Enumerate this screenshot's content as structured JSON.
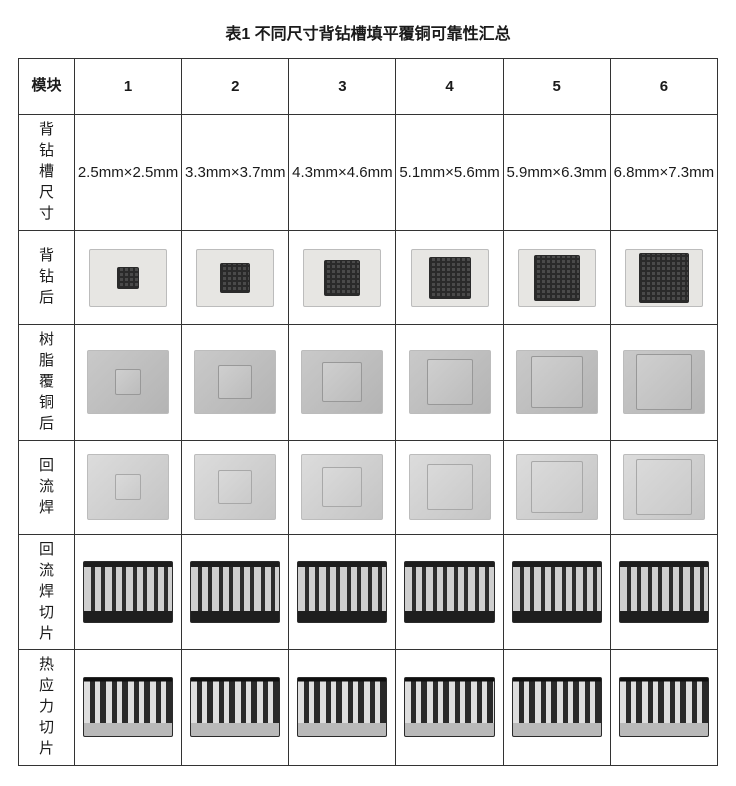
{
  "title": "表1 不同尺寸背钻槽填平覆铜可靠性汇总",
  "headers": {
    "module": "模块",
    "cols": [
      "1",
      "2",
      "3",
      "4",
      "5",
      "6"
    ]
  },
  "rows": {
    "size": {
      "label": "背钻槽尺寸",
      "values": [
        "2.5mm×2.5mm",
        "3.3mm×3.7mm",
        "4.3mm×4.6mm",
        "5.1mm×5.6mm",
        "5.9mm×6.3mm",
        "6.8mm×7.3mm"
      ]
    },
    "after_drill": {
      "label": "背钻后",
      "inner_sizes": [
        22,
        30,
        36,
        42,
        46,
        50
      ]
    },
    "after_resin": {
      "label": "树脂覆铜后",
      "inner_sizes": [
        26,
        34,
        40,
        46,
        52,
        56
      ]
    },
    "after_reflow": {
      "label": "回流焊",
      "inner_sizes": [
        26,
        34,
        40,
        46,
        52,
        56
      ]
    },
    "reflow_section": {
      "label": "回流焊切片"
    },
    "thermal_section": {
      "label": "热应力切片"
    }
  },
  "colors": {
    "border": "#333333",
    "text": "#1a1a1a",
    "background": "#ffffff"
  }
}
